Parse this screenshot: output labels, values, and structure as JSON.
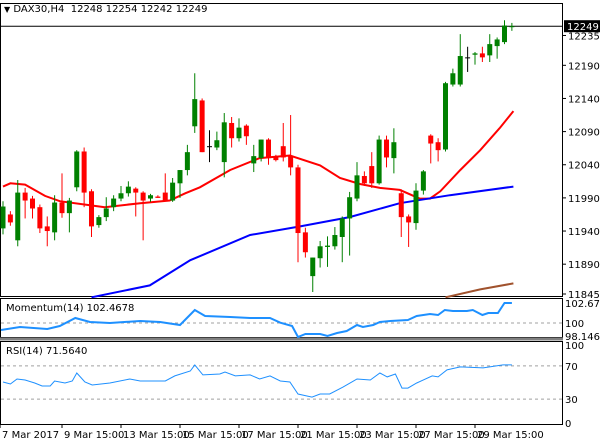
{
  "header": {
    "symbol": "DAX30,H4",
    "ohlc": "12248 12254 12242 12249",
    "arrow": "▼"
  },
  "chart_data": [
    {
      "type": "candlestick",
      "title": "DAX30,H4",
      "ylim": [
        11842,
        12284
      ],
      "price_ticks": [
        12235,
        12190,
        12140,
        12090,
        12040,
        11990,
        11940,
        11890,
        11845
      ],
      "current_price": 12249,
      "x_tick_labels": [
        {
          "index": -0.4,
          "label": "7 Mar 2017"
        },
        {
          "index": 8,
          "label": "9 Mar 15:00"
        },
        {
          "index": 16,
          "label": "13 Mar 15:00"
        },
        {
          "index": 24,
          "label": "15 Mar 15:00"
        },
        {
          "index": 32,
          "label": "17 Mar 15:00"
        },
        {
          "index": 40,
          "label": "21 Mar 15:00"
        },
        {
          "index": 48,
          "label": "23 Mar 15:00"
        },
        {
          "index": 56,
          "label": "27 Mar 15:00"
        },
        {
          "index": 64,
          "label": "29 Mar 15:00"
        }
      ],
      "candles": [
        [
          11944,
          11985,
          11935,
          11977
        ],
        [
          11965,
          11970,
          11948,
          11953
        ],
        [
          11926,
          12017,
          11917,
          11998
        ],
        [
          11998,
          12005,
          11959,
          11986
        ],
        [
          11989,
          11993,
          11959,
          11974
        ],
        [
          11976,
          11980,
          11937,
          11944
        ],
        [
          11947,
          11962,
          11917,
          11940
        ],
        [
          11938,
          11994,
          11926,
          11983
        ],
        [
          11983,
          12027,
          11960,
          11967
        ],
        [
          11967,
          11990,
          11938,
          11986
        ],
        [
          12006,
          12062,
          12000,
          12060
        ],
        [
          12060,
          12066,
          11976,
          11998
        ],
        [
          12000,
          12003,
          11931,
          11947
        ],
        [
          11949,
          11964,
          11945,
          11961
        ],
        [
          11961,
          11991,
          11955,
          11974
        ],
        [
          11976,
          11994,
          11970,
          11989
        ],
        [
          11989,
          12008,
          11985,
          11997
        ],
        [
          11997,
          12015,
          11992,
          12007
        ],
        [
          12004,
          12006,
          11962,
          11998
        ],
        [
          11998,
          12000,
          11926,
          11986
        ],
        [
          11989,
          11996,
          11984,
          11994
        ],
        [
          11992,
          11994,
          11990,
          11990
        ],
        [
          11998,
          12027,
          11985,
          11986
        ],
        [
          11986,
          12020,
          11984,
          12013
        ],
        [
          12012,
          12032,
          11990,
          12032
        ],
        [
          12032,
          12070,
          12024,
          12059
        ],
        [
          12098,
          12178,
          12088,
          12139
        ],
        [
          12137,
          12140,
          12059,
          12059
        ],
        [
          12068,
          12092,
          12044,
          12068
        ],
        [
          12066,
          12090,
          12062,
          12077
        ],
        [
          12044,
          12118,
          12021,
          12104
        ],
        [
          12103,
          12112,
          12066,
          12080
        ],
        [
          12080,
          12110,
          12075,
          12096
        ],
        [
          12099,
          12101,
          12070,
          12083
        ],
        [
          12042,
          12070,
          12029,
          12053
        ],
        [
          12050,
          12078,
          12045,
          12078
        ],
        [
          12078,
          12080,
          12040,
          12050
        ],
        [
          12052,
          12055,
          12045,
          12047
        ],
        [
          12068,
          12103,
          12045,
          12051
        ],
        [
          12054,
          12115,
          12024,
          12036
        ],
        [
          12036,
          12040,
          11893,
          11937
        ],
        [
          11938,
          11945,
          11900,
          11908
        ],
        [
          11872,
          11900,
          11848,
          11900
        ],
        [
          11899,
          11925,
          11885,
          11917
        ],
        [
          11916,
          11932,
          11886,
          11918
        ],
        [
          11917,
          11946,
          11912,
          11934
        ],
        [
          11931,
          11962,
          11893,
          11959
        ],
        [
          11959,
          11999,
          11903,
          11991
        ],
        [
          11989,
          12044,
          11985,
          12024
        ],
        [
          12023,
          12030,
          12008,
          12012
        ],
        [
          12038,
          12059,
          12005,
          12012
        ],
        [
          12012,
          12084,
          12010,
          12078
        ],
        [
          12078,
          12084,
          12036,
          12051
        ],
        [
          12050,
          12095,
          12027,
          12074
        ],
        [
          11997,
          12003,
          11931,
          11961
        ],
        [
          11962,
          11965,
          11916,
          11953
        ],
        [
          11952,
          12012,
          11942,
          12001
        ],
        [
          12001,
          12032,
          11995,
          12030
        ],
        [
          12084,
          12086,
          12042,
          12072
        ],
        [
          12074,
          12080,
          12045,
          12062
        ],
        [
          12063,
          12165,
          12060,
          12163
        ],
        [
          12161,
          12185,
          12158,
          12178
        ],
        [
          12161,
          12237,
          12158,
          12204
        ],
        [
          12202,
          12218,
          12180,
          12202
        ],
        [
          12206,
          12210,
          12191,
          12208
        ],
        [
          12208,
          12218,
          12195,
          12202
        ],
        [
          12205,
          12237,
          12195,
          12222
        ],
        [
          12219,
          12232,
          12200,
          12229
        ],
        [
          12225,
          12258,
          12222,
          12250
        ],
        [
          12248,
          12254,
          12242,
          12249
        ]
      ],
      "moving_averages": [
        {
          "name": "MA fast",
          "color": "#ff0000",
          "points": [
            [
              0,
              12007
            ],
            [
              1,
              12012
            ],
            [
              3,
              12010
            ],
            [
              5.7,
              11993
            ],
            [
              7.7,
              11985
            ],
            [
              11.8,
              11979
            ],
            [
              13.8,
              11976
            ],
            [
              18.6,
              11982
            ],
            [
              22.6,
              11986
            ],
            [
              24.7,
              11997
            ],
            [
              26.7,
              12006
            ],
            [
              30.8,
              12032
            ],
            [
              34.8,
              12050
            ],
            [
              38.9,
              12054
            ],
            [
              43,
              12039
            ],
            [
              45.7,
              12020
            ],
            [
              48.4,
              12011
            ],
            [
              51.1,
              12005
            ],
            [
              53.8,
              12002
            ],
            [
              56.5,
              11989
            ],
            [
              57.9,
              11989
            ],
            [
              59.3,
              12000
            ],
            [
              62,
              12032
            ],
            [
              64.7,
              12062
            ],
            [
              67.4,
              12096
            ],
            [
              69.2,
              12121
            ]
          ]
        },
        {
          "name": "MA medium",
          "color": "#0000ff",
          "points": [
            [
              12,
              11840
            ],
            [
              19.9,
              11858
            ],
            [
              25.4,
              11896
            ],
            [
              33.5,
              11934
            ],
            [
              40.3,
              11947
            ],
            [
              47,
              11961
            ],
            [
              53.8,
              11982
            ],
            [
              60.6,
              11994
            ],
            [
              69.2,
              12007
            ]
          ]
        },
        {
          "name": "MA slow",
          "color": "#a0522d",
          "points": [
            [
              60,
              11840
            ],
            [
              64.7,
              11852
            ],
            [
              69.2,
              11861
            ]
          ]
        }
      ]
    },
    {
      "type": "line",
      "title": "Momentum(14) 102.4678",
      "ylim": [
        98.13,
        103.34
      ],
      "ticks": [
        "102.6736",
        "100",
        "98.1465"
      ],
      "tick_values": [
        102.6736,
        100,
        98.1465
      ],
      "reference_level": 100,
      "color": "#1e90ff",
      "points": [
        [
          -0.4,
          99.06
        ],
        [
          2.3,
          99.47
        ],
        [
          6,
          99.2
        ],
        [
          7.7,
          99.6
        ],
        [
          9.8,
          100.67
        ],
        [
          11.8,
          100.13
        ],
        [
          14.5,
          100
        ],
        [
          18.6,
          100.27
        ],
        [
          21.3,
          100.13
        ],
        [
          24,
          99.73
        ],
        [
          26,
          101.74
        ],
        [
          27.4,
          100.94
        ],
        [
          30.8,
          100.8
        ],
        [
          33.5,
          100.67
        ],
        [
          36.2,
          100.67
        ],
        [
          37.6,
          100.04
        ],
        [
          39.2,
          99.6
        ],
        [
          40,
          98.13
        ],
        [
          41,
          98.53
        ],
        [
          43,
          98.53
        ],
        [
          44,
          98.26
        ],
        [
          45.3,
          98.66
        ],
        [
          46.6,
          98.93
        ],
        [
          48,
          99.73
        ],
        [
          48.8,
          99.47
        ],
        [
          50.2,
          99.73
        ],
        [
          51.1,
          100.13
        ],
        [
          52.5,
          100.27
        ],
        [
          54.9,
          100.4
        ],
        [
          56.1,
          100.94
        ],
        [
          57.9,
          101.2
        ],
        [
          59,
          101.07
        ],
        [
          59.9,
          101.74
        ],
        [
          61,
          101.6
        ],
        [
          62.9,
          101.6
        ],
        [
          63.7,
          101.74
        ],
        [
          65,
          101.07
        ],
        [
          65.8,
          101.34
        ],
        [
          67.1,
          101.34
        ],
        [
          68,
          102.67
        ],
        [
          69,
          102.67
        ]
      ]
    },
    {
      "type": "line",
      "title": "RSI(14) 71.5640",
      "ylim": [
        0,
        100
      ],
      "ticks": [
        "100",
        "70",
        "30",
        "0"
      ],
      "tick_values": [
        100,
        70,
        30,
        0
      ],
      "levels": [
        70,
        30
      ],
      "color": "#1e90ff",
      "points": [
        [
          0,
          50.6
        ],
        [
          1,
          48.2
        ],
        [
          1.9,
          54.2
        ],
        [
          3,
          53
        ],
        [
          4.3,
          49.4
        ],
        [
          5.3,
          45.8
        ],
        [
          6.4,
          45.8
        ],
        [
          7,
          51.8
        ],
        [
          8.4,
          49.4
        ],
        [
          9.4,
          51.8
        ],
        [
          10,
          61.5
        ],
        [
          11.1,
          50.6
        ],
        [
          12.1,
          47
        ],
        [
          14.5,
          49.4
        ],
        [
          17.2,
          54.2
        ],
        [
          18.6,
          51.8
        ],
        [
          22,
          51.8
        ],
        [
          23.3,
          57.9
        ],
        [
          25.4,
          63.9
        ],
        [
          26,
          71.2
        ],
        [
          27.1,
          59.1
        ],
        [
          29.4,
          60.3
        ],
        [
          30.1,
          62.7
        ],
        [
          31.5,
          57.9
        ],
        [
          33.5,
          59.1
        ],
        [
          34.8,
          54.2
        ],
        [
          36.2,
          57.9
        ],
        [
          37.6,
          51.8
        ],
        [
          38.9,
          50.6
        ],
        [
          40,
          36.1
        ],
        [
          41.9,
          32.4
        ],
        [
          43,
          36.1
        ],
        [
          44.3,
          36.1
        ],
        [
          46.1,
          44.5
        ],
        [
          48,
          54.2
        ],
        [
          49.8,
          53
        ],
        [
          51.1,
          61.5
        ],
        [
          52.1,
          56.7
        ],
        [
          53.2,
          60.3
        ],
        [
          54.1,
          43.3
        ],
        [
          54.9,
          43.3
        ],
        [
          56.1,
          49.4
        ],
        [
          58.2,
          57.9
        ],
        [
          59,
          56.7
        ],
        [
          60.2,
          65.2
        ],
        [
          62,
          68.8
        ],
        [
          65.1,
          67.6
        ],
        [
          67.8,
          71.2
        ],
        [
          69,
          71.2
        ]
      ]
    }
  ],
  "colors": {
    "bull": "#008000",
    "bear": "#ff0000",
    "doji": "#000000",
    "grid": "#a0a0a0"
  }
}
